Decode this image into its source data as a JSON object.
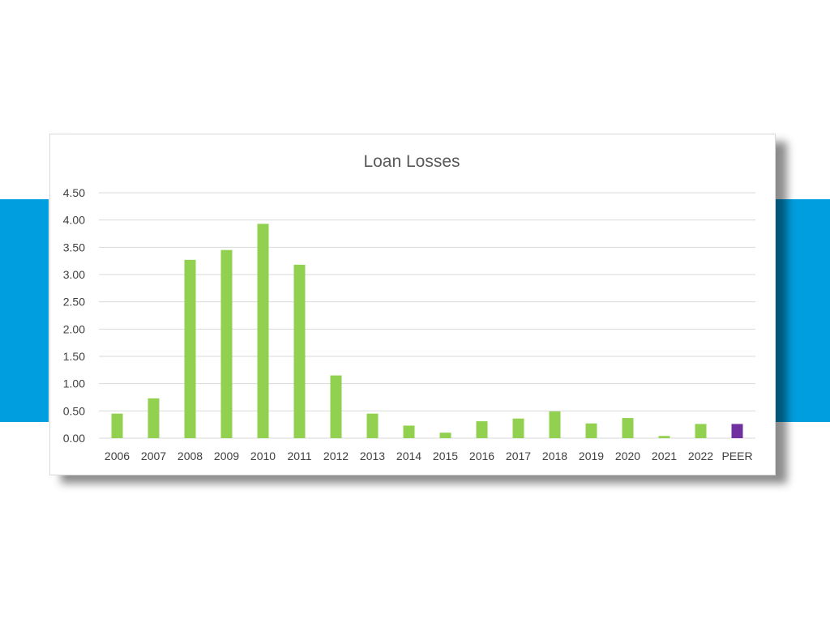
{
  "colors": {
    "background": "#ffffff",
    "side_band": "#009ede",
    "bar_default": "#92d050",
    "bar_peer": "#7030a0",
    "gridline": "#d9d9d9",
    "text": "#595959"
  },
  "chart_data": {
    "type": "bar",
    "title": "Loan Losses",
    "xlabel": "",
    "ylabel": "",
    "ylim": [
      0,
      4.5
    ],
    "ytick_step": 0.5,
    "yticks": [
      "0.00",
      "0.50",
      "1.00",
      "1.50",
      "2.00",
      "2.50",
      "3.00",
      "3.50",
      "4.00",
      "4.50"
    ],
    "grid": true,
    "legend": "none",
    "categories": [
      "2006",
      "2007",
      "2008",
      "2009",
      "2010",
      "2011",
      "2012",
      "2013",
      "2014",
      "2015",
      "2016",
      "2017",
      "2018",
      "2019",
      "2020",
      "2021",
      "2022",
      "PEER"
    ],
    "values": [
      0.45,
      0.73,
      3.27,
      3.45,
      3.93,
      3.18,
      1.15,
      0.45,
      0.23,
      0.1,
      0.31,
      0.36,
      0.49,
      0.27,
      0.37,
      0.04,
      0.26,
      0.26
    ],
    "highlight_category": "PEER"
  }
}
